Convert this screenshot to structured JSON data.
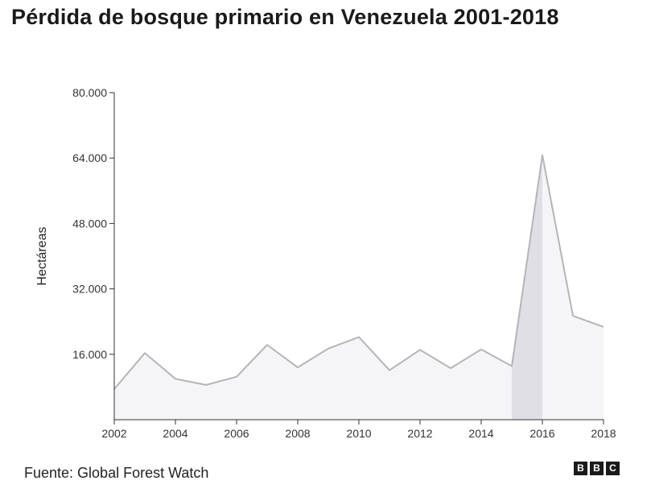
{
  "title": "Pérdida de bosque primario en Venezuela 2001-2018",
  "source": "Fuente: Global Forest Watch",
  "logo": [
    "B",
    "B",
    "C"
  ],
  "colors": {
    "line": "#b5b5b8",
    "fill": "#f5f5f8",
    "highlight": "#e0dfe5",
    "axis": "#333333"
  },
  "chart_data": {
    "type": "area",
    "x": [
      2002,
      2003,
      2004,
      2005,
      2006,
      2007,
      2008,
      2009,
      2010,
      2011,
      2012,
      2013,
      2014,
      2015,
      2016,
      2017,
      2018
    ],
    "values": [
      7500,
      16300,
      10000,
      8500,
      10500,
      18300,
      12800,
      17400,
      20200,
      12100,
      17100,
      12600,
      17200,
      13100,
      64700,
      25400,
      22700
    ],
    "ylabel": "Hectáreas",
    "xlabel": "",
    "ylim": [
      0,
      80000
    ],
    "xlim": [
      2002,
      2018
    ],
    "y_ticks": [
      "16.000",
      "32.000",
      "48.000",
      "64.000",
      "80.000"
    ],
    "y_tick_values": [
      16000,
      32000,
      48000,
      64000,
      80000
    ],
    "x_ticks": [
      "2002",
      "2004",
      "2006",
      "2008",
      "2010",
      "2012",
      "2014",
      "2016",
      "2018"
    ],
    "x_tick_values": [
      2002,
      2004,
      2006,
      2008,
      2010,
      2012,
      2014,
      2016,
      2018
    ],
    "highlight_range": [
      2015,
      2016
    ],
    "grid": false
  }
}
